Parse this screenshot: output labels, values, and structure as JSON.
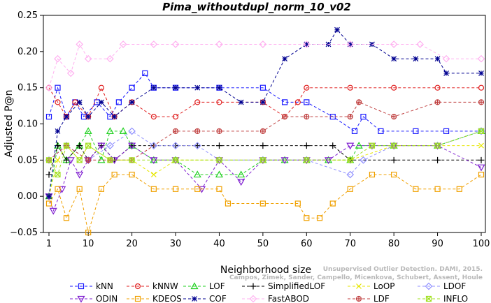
{
  "chart_data": {
    "type": "line",
    "title": "Pima_withoutdupl_norm_10_v02",
    "xlabel": "Neighborhood size",
    "ylabel": "Adjusted P@n",
    "xlim": [
      1,
      100
    ],
    "ylim": [
      -0.05,
      0.25
    ],
    "xticks": [
      1,
      10,
      20,
      30,
      40,
      50,
      60,
      70,
      80,
      90,
      100
    ],
    "yticks": [
      -0.05,
      0.0,
      0.05,
      0.1,
      0.15,
      0.2,
      0.25
    ],
    "ytick_labels": [
      "−0.05",
      "0.00",
      "0.05",
      "0.10",
      "0.15",
      "0.20",
      "0.25"
    ],
    "grid": false,
    "legend_position": "bottom",
    "series": [
      {
        "name": "kNN",
        "color": "#1a1aff",
        "marker": "square",
        "points": [
          [
            1,
            0.11
          ],
          [
            3,
            0.15
          ],
          [
            5,
            0.11
          ],
          [
            7,
            0.13
          ],
          [
            9,
            0.11
          ],
          [
            12,
            0.13
          ],
          [
            15,
            0.11
          ],
          [
            17,
            0.13
          ],
          [
            20,
            0.15
          ],
          [
            23,
            0.17
          ],
          [
            25,
            0.15
          ],
          [
            30,
            0.15
          ],
          [
            40,
            0.15
          ],
          [
            50,
            0.15
          ],
          [
            55,
            0.13
          ],
          [
            60,
            0.13
          ],
          [
            66,
            0.11
          ],
          [
            71,
            0.09
          ],
          [
            73,
            0.11
          ],
          [
            77,
            0.09
          ],
          [
            85,
            0.09
          ],
          [
            92,
            0.09
          ],
          [
            100,
            0.09
          ]
        ]
      },
      {
        "name": "kNNW",
        "color": "#e02020",
        "marker": "circle",
        "points": [
          [
            1,
            0.15
          ],
          [
            3,
            0.13
          ],
          [
            5,
            0.11
          ],
          [
            7,
            0.13
          ],
          [
            10,
            0.11
          ],
          [
            13,
            0.15
          ],
          [
            16,
            0.11
          ],
          [
            20,
            0.13
          ],
          [
            25,
            0.11
          ],
          [
            30,
            0.11
          ],
          [
            35,
            0.13
          ],
          [
            40,
            0.13
          ],
          [
            50,
            0.13
          ],
          [
            55,
            0.11
          ],
          [
            58,
            0.13
          ],
          [
            60,
            0.15
          ],
          [
            70,
            0.15
          ],
          [
            80,
            0.15
          ],
          [
            90,
            0.15
          ],
          [
            100,
            0.15
          ]
        ]
      },
      {
        "name": "LOF",
        "color": "#20d020",
        "marker": "triangle",
        "points": [
          [
            1,
            0.0
          ],
          [
            3,
            0.07
          ],
          [
            5,
            0.05
          ],
          [
            8,
            0.07
          ],
          [
            10,
            0.09
          ],
          [
            13,
            0.05
          ],
          [
            15,
            0.09
          ],
          [
            18,
            0.09
          ],
          [
            20,
            0.07
          ],
          [
            25,
            0.05
          ],
          [
            30,
            0.05
          ],
          [
            35,
            0.03
          ],
          [
            40,
            0.03
          ],
          [
            45,
            0.03
          ],
          [
            50,
            0.05
          ],
          [
            55,
            0.05
          ],
          [
            60,
            0.05
          ],
          [
            65,
            0.05
          ],
          [
            70,
            0.05
          ],
          [
            72,
            0.07
          ],
          [
            80,
            0.07
          ],
          [
            90,
            0.07
          ],
          [
            100,
            0.09
          ]
        ]
      },
      {
        "name": "SimplifiedLOF",
        "color": "#000000",
        "marker": "plus",
        "points": [
          [
            1,
            0.03
          ],
          [
            3,
            0.07
          ],
          [
            5,
            0.05
          ],
          [
            8,
            0.07
          ],
          [
            10,
            0.05
          ],
          [
            13,
            0.07
          ],
          [
            16,
            0.05
          ],
          [
            20,
            0.07
          ],
          [
            25,
            0.07
          ],
          [
            30,
            0.07
          ],
          [
            35,
            0.07
          ],
          [
            40,
            0.07
          ],
          [
            50,
            0.07
          ],
          [
            60,
            0.07
          ],
          [
            66,
            0.07
          ],
          [
            70,
            0.05
          ],
          [
            80,
            0.05
          ],
          [
            90,
            0.05
          ],
          [
            100,
            0.05
          ]
        ]
      },
      {
        "name": "LoOP",
        "color": "#e6e600",
        "marker": "x",
        "points": [
          [
            1,
            0.0
          ],
          [
            3,
            0.05
          ],
          [
            5,
            0.07
          ],
          [
            8,
            0.05
          ],
          [
            10,
            0.07
          ],
          [
            15,
            0.05
          ],
          [
            20,
            0.05
          ],
          [
            25,
            0.03
          ],
          [
            30,
            0.05
          ],
          [
            40,
            0.05
          ],
          [
            50,
            0.05
          ],
          [
            60,
            0.05
          ],
          [
            70,
            0.05
          ],
          [
            80,
            0.07
          ],
          [
            90,
            0.07
          ],
          [
            100,
            0.07
          ]
        ]
      },
      {
        "name": "LDOF",
        "color": "#9090ff",
        "marker": "diamond",
        "points": [
          [
            1,
            0.05
          ],
          [
            5,
            0.07
          ],
          [
            10,
            0.05
          ],
          [
            15,
            0.07
          ],
          [
            20,
            0.09
          ],
          [
            25,
            0.07
          ],
          [
            30,
            0.07
          ],
          [
            35,
            0.07
          ],
          [
            40,
            0.05
          ],
          [
            50,
            0.05
          ],
          [
            60,
            0.05
          ],
          [
            70,
            0.03
          ],
          [
            73,
            0.05
          ],
          [
            80,
            0.07
          ],
          [
            90,
            0.07
          ],
          [
            100,
            0.09
          ]
        ]
      },
      {
        "name": "ODIN",
        "color": "#8020d0",
        "marker": "triangle-down",
        "points": [
          [
            1,
            0.0
          ],
          [
            2,
            -0.02
          ],
          [
            4,
            0.01
          ],
          [
            6,
            0.05
          ],
          [
            8,
            0.03
          ],
          [
            10,
            0.05
          ],
          [
            13,
            0.07
          ],
          [
            16,
            0.05
          ],
          [
            20,
            0.07
          ],
          [
            25,
            0.05
          ],
          [
            30,
            0.05
          ],
          [
            36,
            0.01
          ],
          [
            40,
            0.05
          ],
          [
            45,
            0.02
          ],
          [
            50,
            0.05
          ],
          [
            55,
            0.05
          ],
          [
            60,
            0.05
          ],
          [
            65,
            0.05
          ],
          [
            70,
            0.07
          ],
          [
            75,
            0.07
          ],
          [
            80,
            0.07
          ],
          [
            90,
            0.07
          ],
          [
            100,
            0.04
          ]
        ]
      },
      {
        "name": "KDEOS",
        "color": "#f0a000",
        "marker": "square",
        "points": [
          [
            1,
            -0.01
          ],
          [
            3,
            0.01
          ],
          [
            5,
            -0.03
          ],
          [
            8,
            0.01
          ],
          [
            10,
            -0.05
          ],
          [
            13,
            0.01
          ],
          [
            16,
            0.03
          ],
          [
            20,
            0.03
          ],
          [
            25,
            0.01
          ],
          [
            30,
            0.01
          ],
          [
            35,
            0.01
          ],
          [
            40,
            0.01
          ],
          [
            42,
            -0.01
          ],
          [
            50,
            -0.01
          ],
          [
            58,
            -0.01
          ],
          [
            60,
            -0.03
          ],
          [
            63,
            -0.03
          ],
          [
            66,
            -0.01
          ],
          [
            70,
            0.01
          ],
          [
            75,
            0.03
          ],
          [
            80,
            0.03
          ],
          [
            85,
            0.01
          ],
          [
            90,
            0.01
          ],
          [
            95,
            0.01
          ],
          [
            100,
            0.03
          ]
        ]
      },
      {
        "name": "COF",
        "color": "#000090",
        "marker": "asterisk",
        "points": [
          [
            1,
            0.0
          ],
          [
            3,
            0.09
          ],
          [
            5,
            0.11
          ],
          [
            8,
            0.13
          ],
          [
            10,
            0.11
          ],
          [
            13,
            0.13
          ],
          [
            16,
            0.11
          ],
          [
            20,
            0.13
          ],
          [
            25,
            0.15
          ],
          [
            30,
            0.15
          ],
          [
            35,
            0.15
          ],
          [
            40,
            0.15
          ],
          [
            45,
            0.13
          ],
          [
            50,
            0.13
          ],
          [
            55,
            0.19
          ],
          [
            60,
            0.21
          ],
          [
            65,
            0.21
          ],
          [
            67,
            0.23
          ],
          [
            70,
            0.21
          ],
          [
            75,
            0.21
          ],
          [
            80,
            0.19
          ],
          [
            85,
            0.19
          ],
          [
            90,
            0.19
          ],
          [
            92,
            0.17
          ],
          [
            100,
            0.17
          ]
        ]
      },
      {
        "name": "FastABOD",
        "color": "#ffb0f0",
        "marker": "diamond",
        "points": [
          [
            1,
            0.15
          ],
          [
            3,
            0.19
          ],
          [
            6,
            0.17
          ],
          [
            8,
            0.21
          ],
          [
            10,
            0.19
          ],
          [
            15,
            0.19
          ],
          [
            18,
            0.21
          ],
          [
            25,
            0.21
          ],
          [
            30,
            0.21
          ],
          [
            40,
            0.21
          ],
          [
            50,
            0.21
          ],
          [
            60,
            0.21
          ],
          [
            70,
            0.21
          ],
          [
            80,
            0.21
          ],
          [
            86,
            0.21
          ],
          [
            92,
            0.19
          ],
          [
            100,
            0.19
          ]
        ]
      },
      {
        "name": "LDF",
        "color": "#c04040",
        "marker": "circle-plus",
        "points": [
          [
            1,
            0.05
          ],
          [
            5,
            0.07
          ],
          [
            10,
            0.05
          ],
          [
            15,
            0.05
          ],
          [
            20,
            0.05
          ],
          [
            30,
            0.09
          ],
          [
            35,
            0.09
          ],
          [
            40,
            0.09
          ],
          [
            50,
            0.09
          ],
          [
            55,
            0.11
          ],
          [
            60,
            0.11
          ],
          [
            70,
            0.11
          ],
          [
            72,
            0.13
          ],
          [
            80,
            0.11
          ],
          [
            90,
            0.13
          ],
          [
            100,
            0.13
          ]
        ]
      },
      {
        "name": "INFLO",
        "color": "#a0e020",
        "marker": "square-x",
        "points": [
          [
            1,
            0.05
          ],
          [
            3,
            0.03
          ],
          [
            5,
            0.07
          ],
          [
            8,
            0.05
          ],
          [
            10,
            0.07
          ],
          [
            15,
            0.05
          ],
          [
            20,
            0.05
          ],
          [
            30,
            0.05
          ],
          [
            40,
            0.05
          ],
          [
            50,
            0.05
          ],
          [
            60,
            0.05
          ],
          [
            70,
            0.05
          ],
          [
            75,
            0.07
          ],
          [
            80,
            0.07
          ],
          [
            90,
            0.07
          ],
          [
            100,
            0.09
          ]
        ]
      }
    ],
    "legend": {
      "rows": [
        [
          "kNN",
          "kNNW",
          "LOF",
          "SimplifiedLOF",
          "LoOP",
          "LDOF"
        ],
        [
          "ODIN",
          "KDEOS",
          "COF",
          "FastABOD",
          "LDF",
          "INFLO"
        ]
      ]
    },
    "watermark": {
      "line1": "Unsupervised Outlier Detection. DAMI, 2015.",
      "line2": "Campos, Zimek, Sander, Campello, Micenkova, Schubert, Assent, Houle"
    }
  }
}
